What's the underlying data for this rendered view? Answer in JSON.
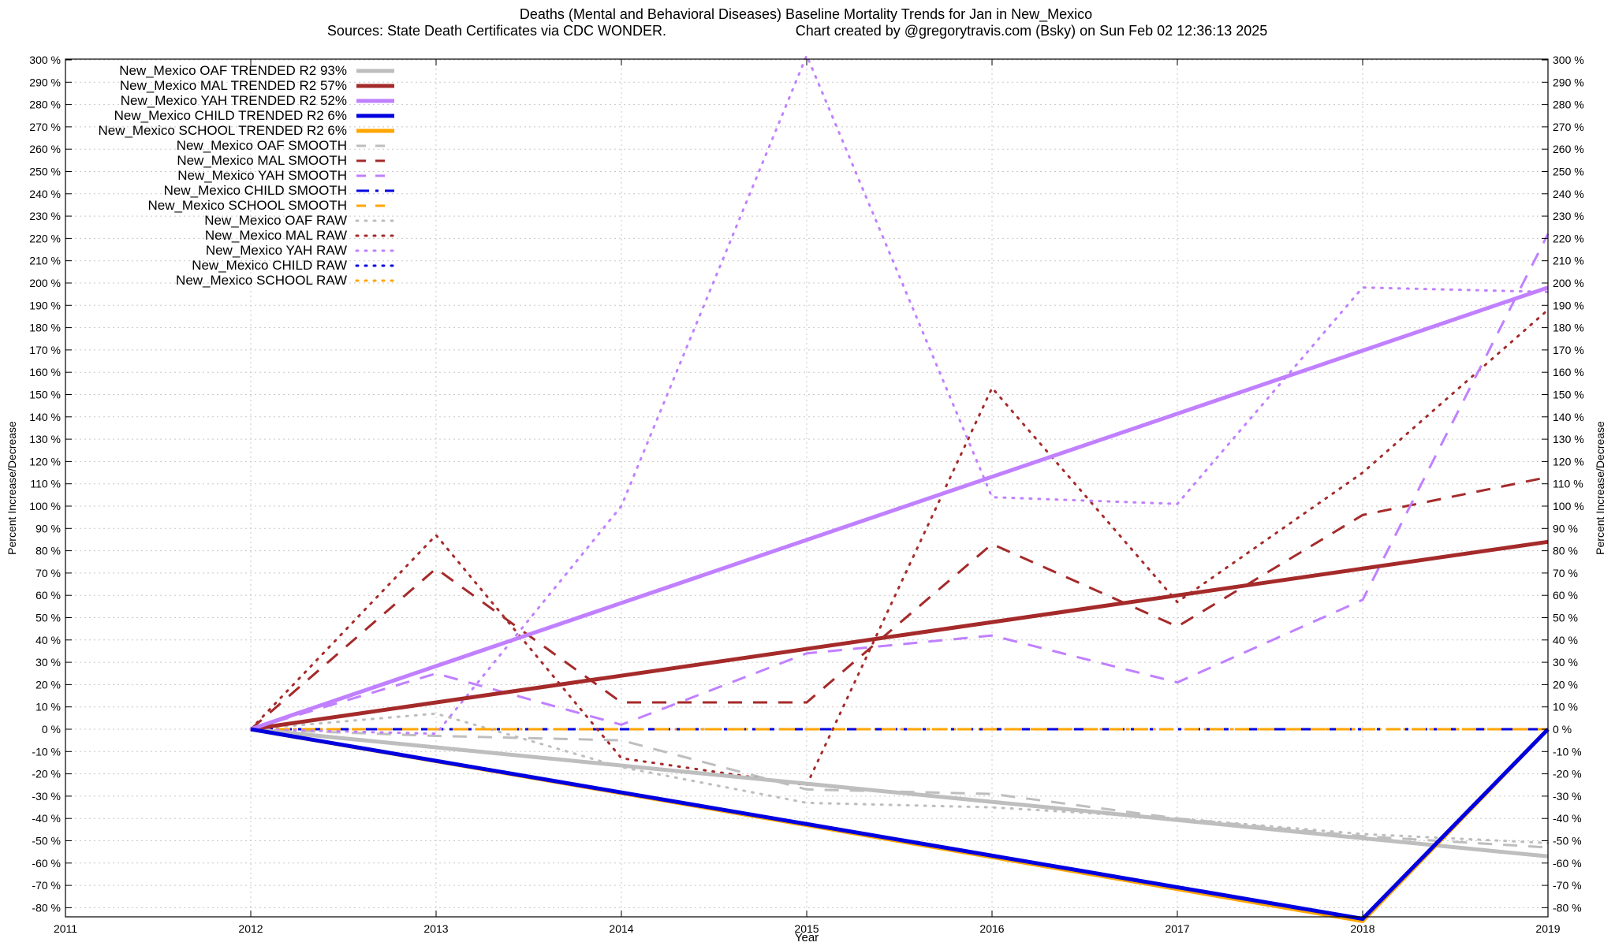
{
  "chart_data": {
    "type": "line",
    "title": "Deaths (Mental and Behavioral Diseases)  Baseline Mortality Trends for Jan in New_Mexico",
    "subtitle_left": "Sources: State Death Certificates via CDC WONDER.",
    "subtitle_right": "Chart created by @gregorytravis.com (Bsky) on Sun Feb 02 12:36:13 2025",
    "xlabel": "Year",
    "ylabel": "Percent Increase/Decrease",
    "y2label": "Percent Increase/Decrease",
    "xlim": [
      2011,
      2019
    ],
    "ylim": [
      -85,
      300
    ],
    "x_ticks": [
      "2011",
      "2012",
      "2013",
      "2014",
      "2015",
      "2016",
      "2017",
      "2018",
      "2019"
    ],
    "y_ticks": [
      "300 %",
      "290 %",
      "280 %",
      "270 %",
      "260 %",
      "250 %",
      "240 %",
      "230 %",
      "220 %",
      "210 %",
      "200 %",
      "190 %",
      "180 %",
      "170 %",
      "160 %",
      "150 %",
      "140 %",
      "130 %",
      "120 %",
      "110 %",
      "100 %",
      "90 %",
      "80 %",
      "70 %",
      "60 %",
      "50 %",
      "40 %",
      "30 %",
      "20 %",
      "10 %",
      "0 %",
      "-10 %",
      "-20 %",
      "-30 %",
      "-40 %",
      "-50 %",
      "-60 %",
      "-70 %",
      "-80 %"
    ],
    "grid": true,
    "legend_position": "top-left",
    "colors": {
      "oaf": "#bebebe",
      "mal": "#a52a2a",
      "yah": "#c080ff",
      "child": "#0000e0",
      "school": "#ffa500"
    },
    "series": [
      {
        "name": "New_Mexico OAF TRENDED R2  93%",
        "color": "#bebebe",
        "style": "solid",
        "x": [
          2012,
          2019
        ],
        "y": [
          0,
          -57
        ]
      },
      {
        "name": "New_Mexico MAL TRENDED R2  57%",
        "color": "#a52a2a",
        "style": "solid",
        "x": [
          2012,
          2019
        ],
        "y": [
          0,
          84
        ]
      },
      {
        "name": "New_Mexico YAH TRENDED R2  52%",
        "color": "#c080ff",
        "style": "solid",
        "x": [
          2012,
          2019
        ],
        "y": [
          0,
          198
        ]
      },
      {
        "name": "New_Mexico CHILD TRENDED R2   6%",
        "color": "#0000e0",
        "style": "solid",
        "x": [
          2012,
          2018,
          2019
        ],
        "y": [
          0,
          -85,
          0
        ]
      },
      {
        "name": "New_Mexico SCHOOL TRENDED R2   6%",
        "color": "#ffa500",
        "style": "solid",
        "x": [
          2012,
          2018,
          2019
        ],
        "y": [
          0,
          -86,
          0
        ]
      },
      {
        "name": "New_Mexico OAF SMOOTH",
        "color": "#bebebe",
        "style": "dash",
        "x": [
          2012,
          2013,
          2014,
          2015,
          2016,
          2017,
          2018,
          2019
        ],
        "y": [
          0,
          -3,
          -5,
          -27,
          -29,
          -40,
          -48,
          -53
        ]
      },
      {
        "name": "New_Mexico MAL SMOOTH",
        "color": "#a52a2a",
        "style": "dash",
        "x": [
          2012,
          2013,
          2014,
          2015,
          2016,
          2017,
          2018,
          2019
        ],
        "y": [
          0,
          72,
          12,
          12,
          83,
          46,
          96,
          113
        ]
      },
      {
        "name": "New_Mexico YAH SMOOTH",
        "color": "#c080ff",
        "style": "dash",
        "x": [
          2012,
          2013,
          2014,
          2015,
          2016,
          2017,
          2018,
          2019
        ],
        "y": [
          0,
          25,
          2,
          34,
          42,
          21,
          58,
          222
        ]
      },
      {
        "name": "New_Mexico CHILD SMOOTH",
        "color": "#0000e0",
        "style": "dashdot",
        "x": [
          2012,
          2019
        ],
        "y": [
          0,
          0
        ]
      },
      {
        "name": "New_Mexico SCHOOL SMOOTH",
        "color": "#ffa500",
        "style": "dash",
        "x": [
          2012,
          2019
        ],
        "y": [
          0,
          0
        ]
      },
      {
        "name": "New_Mexico OAF RAW",
        "color": "#bebebe",
        "style": "dot",
        "x": [
          2012,
          2013,
          2014,
          2015,
          2016,
          2017,
          2018,
          2019
        ],
        "y": [
          0,
          7,
          -17,
          -33,
          -35,
          -40,
          -47,
          -51
        ]
      },
      {
        "name": "New_Mexico MAL RAW",
        "color": "#a52a2a",
        "style": "dot",
        "x": [
          2012,
          2013,
          2014,
          2015,
          2016,
          2017,
          2018,
          2019
        ],
        "y": [
          0,
          87,
          -13,
          -25,
          153,
          57,
          115,
          188
        ]
      },
      {
        "name": "New_Mexico YAH RAW",
        "color": "#c080ff",
        "style": "dot",
        "x": [
          2012,
          2013,
          2014,
          2015,
          2016,
          2017,
          2018,
          2019
        ],
        "y": [
          0,
          -2,
          100,
          302,
          104,
          101,
          198,
          196
        ]
      },
      {
        "name": "New_Mexico CHILD RAW",
        "color": "#0000e0",
        "style": "dot",
        "x": [
          2012,
          2019
        ],
        "y": [
          0,
          0
        ]
      },
      {
        "name": "New_Mexico SCHOOL RAW",
        "color": "#ffa500",
        "style": "dot",
        "x": [
          2012,
          2019
        ],
        "y": [
          0,
          0
        ]
      }
    ]
  }
}
